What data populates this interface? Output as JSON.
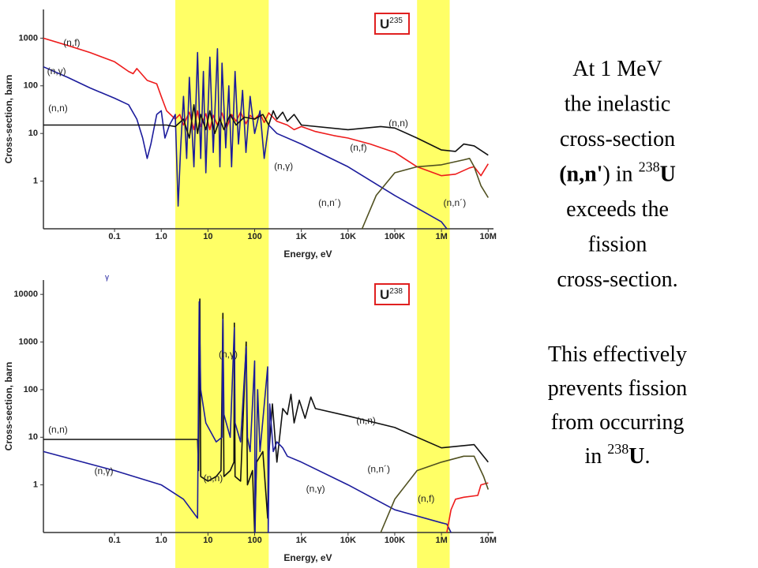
{
  "highlight_ranges": [
    [
      2,
      200
    ],
    [
      300000,
      1500000
    ]
  ],
  "stray_label": "γ",
  "slide_text": {
    "paragraphs": [
      [
        [
          {
            "text": "At 1 MeV"
          }
        ],
        [
          {
            "text": "the inelastic"
          }
        ],
        [
          {
            "text": "cross-section"
          }
        ],
        [
          {
            "text": "(n,n'",
            "bold": true
          },
          {
            "text": ") in "
          },
          {
            "text": "238",
            "sup": true
          },
          {
            "text": "U",
            "bold": true
          }
        ],
        [
          {
            "text": "exceeds the"
          }
        ],
        [
          {
            "text": "fission"
          }
        ],
        [
          {
            "text": "cross-section."
          }
        ]
      ],
      [
        [
          {
            "text": "This effectively"
          }
        ],
        [
          {
            "text": "prevents fission"
          }
        ],
        [
          {
            "text": "from occurring"
          }
        ],
        [
          {
            "text": "in "
          },
          {
            "text": "238",
            "sup": true
          },
          {
            "text": "U",
            "bold": true
          },
          {
            "text": "."
          }
        ]
      ]
    ]
  },
  "chart_data": [
    {
      "type": "line",
      "isotope": {
        "symbol": "U",
        "mass": "235"
      },
      "xlabel": "Energy, eV",
      "ylabel": "Cross-section, barn",
      "xscale": "log",
      "yscale": "log",
      "grid": false,
      "xlim": [
        0.003,
        13000000
      ],
      "ylim": [
        0.1,
        4000
      ],
      "xticks": [
        0.1,
        {
          "value": 1,
          "label": "1.0"
        },
        10,
        100,
        {
          "value": 1000,
          "label": "1K"
        },
        {
          "value": 10000,
          "label": "10K"
        },
        {
          "value": 100000,
          "label": "100K"
        },
        {
          "value": 1000000,
          "label": "1M"
        },
        {
          "value": 10000000,
          "label": "10M"
        }
      ],
      "yticks": [
        1,
        10,
        100,
        1000
      ],
      "series": [
        {
          "name": "(n,f)",
          "color": "#ee1c1c",
          "label_at": [
            [
              0.008,
              780
            ],
            [
              11000,
              4.9
            ]
          ],
          "x": [
            0.003,
            0.01,
            0.03,
            0.1,
            0.2,
            0.25,
            0.3,
            0.5,
            0.8,
            1,
            1.3,
            2,
            2.5,
            3,
            4,
            5,
            6,
            7,
            9,
            11,
            13,
            16,
            20,
            25,
            32,
            40,
            50,
            65,
            80,
            100,
            130,
            160,
            200,
            300,
            500,
            700,
            1000,
            2000,
            5000,
            10000,
            30000,
            100000,
            300000,
            1000000,
            2000000,
            4000000,
            5000000,
            7000000,
            10000000
          ],
          "values": [
            1000,
            700,
            500,
            320,
            200,
            180,
            230,
            130,
            110,
            60,
            30,
            20,
            25,
            15,
            28,
            12,
            30,
            14,
            26,
            12,
            24,
            15,
            27,
            13,
            25,
            18,
            28,
            16,
            24,
            20,
            26,
            17,
            27,
            18,
            15,
            12,
            14,
            11,
            9,
            8,
            6,
            4,
            2,
            1.3,
            1.4,
            1.9,
            2,
            1.3,
            2.3
          ]
        },
        {
          "name": "(n,γ)",
          "color": "#1c1c9c",
          "label_at": [
            [
              0.0036,
              200
            ],
            [
              260,
              2
            ]
          ],
          "x": [
            0.003,
            0.01,
            0.03,
            0.1,
            0.2,
            0.3,
            0.4,
            0.5,
            0.6,
            0.8,
            1,
            1.2,
            1.5,
            2,
            2.3,
            2.6,
            3,
            3.5,
            4,
            5,
            6,
            7,
            8,
            9,
            11,
            13,
            16,
            18,
            20,
            24,
            28,
            32,
            38,
            45,
            55,
            65,
            80,
            100,
            130,
            160,
            200,
            300,
            1000,
            10000,
            100000,
            1000000,
            1300000
          ],
          "values": [
            250,
            150,
            90,
            55,
            40,
            20,
            8,
            3,
            6,
            25,
            30,
            8,
            15,
            25,
            0.3,
            5,
            60,
            3,
            150,
            2,
            500,
            3,
            200,
            1.5,
            400,
            4,
            600,
            2,
            300,
            5,
            100,
            2,
            200,
            6,
            80,
            4,
            60,
            10,
            30,
            3,
            15,
            10,
            6,
            2,
            0.5,
            0.14,
            0.1
          ]
        },
        {
          "name": "(n,n)",
          "color": "#111111",
          "label_at": [
            [
              0.0038,
              33
            ],
            [
              74000,
              16
            ]
          ],
          "x": [
            0.003,
            1,
            1.3,
            2,
            3,
            4,
            5,
            6,
            7,
            9,
            11,
            14,
            18,
            22,
            30,
            40,
            60,
            100,
            150,
            200,
            250,
            300,
            400,
            500,
            700,
            1000,
            10000,
            50000,
            100000,
            300000,
            1000000,
            2000000,
            3000000,
            5000000,
            10000000
          ],
          "values": [
            15,
            15,
            15,
            14,
            20,
            8,
            40,
            10,
            25,
            12,
            30,
            10,
            20,
            12,
            25,
            15,
            22,
            20,
            25,
            15,
            30,
            20,
            28,
            18,
            25,
            15,
            12,
            14,
            13,
            8,
            4.5,
            4.2,
            6,
            5.5,
            3.5
          ]
        },
        {
          "name": "(n,n´)",
          "color": "#505020",
          "label_at": [
            [
              2300,
              0.34
            ],
            [
              1100000,
              0.34
            ]
          ],
          "x": [
            20000,
            40000,
            100000,
            300000,
            1000000,
            3000000,
            4000000,
            5000000,
            7000000,
            10000000
          ],
          "values": [
            0.1,
            0.5,
            1.5,
            2,
            2.2,
            2.8,
            3,
            2,
            0.8,
            0.45
          ]
        }
      ]
    },
    {
      "type": "line",
      "isotope": {
        "symbol": "U",
        "mass": "238"
      },
      "xlabel": "Energy, eV",
      "ylabel": "Cross-section, barn",
      "xscale": "log",
      "yscale": "log",
      "grid": false,
      "xlim": [
        0.003,
        13000000
      ],
      "ylim": [
        0.1,
        20000
      ],
      "xticks": [
        0.1,
        {
          "value": 1,
          "label": "1.0"
        },
        10,
        100,
        {
          "value": 1000,
          "label": "1K"
        },
        {
          "value": 10000,
          "label": "10K"
        },
        {
          "value": 100000,
          "label": "100K"
        },
        {
          "value": 1000000,
          "label": "1M"
        },
        {
          "value": 10000000,
          "label": "10M"
        }
      ],
      "yticks": [
        1,
        10,
        100,
        1000,
        10000
      ],
      "series": [
        {
          "name": "(n,n)",
          "color": "#111111",
          "label_at": [
            [
              0.0038,
              14
            ],
            [
              8,
              1.35
            ],
            [
              15000,
              22
            ]
          ],
          "x": [
            0.003,
            1,
            3,
            6,
            6.3,
            6.7,
            7,
            10,
            15,
            19,
            20.9,
            22,
            30,
            36,
            36.7,
            38,
            50,
            66,
            70,
            90,
            100,
            110,
            150,
            190,
            200,
            240,
            300,
            400,
            500,
            600,
            700,
            900,
            1200,
            1600,
            2000,
            10000,
            100000,
            1000000,
            5000000,
            10000000
          ],
          "values": [
            9,
            9,
            9,
            9,
            2,
            8000,
            1.5,
            1.2,
            1.5,
            2,
            4000,
            1.5,
            2,
            3,
            2500,
            1.5,
            1.2,
            1000,
            1,
            2,
            0.1,
            3,
            5,
            0.2,
            4,
            50,
            3,
            40,
            30,
            80,
            20,
            60,
            25,
            70,
            40,
            28,
            16,
            6,
            7,
            3
          ]
        },
        {
          "name": "(n,γ)",
          "color": "#1c1c9c",
          "label_at": [
            [
              17,
              540
            ],
            [
              0.037,
              1.9
            ],
            [
              1260,
              0.8
            ]
          ],
          "x": [
            0.003,
            0.1,
            1,
            3,
            6,
            6.5,
            7,
            9,
            15,
            20,
            20.9,
            22,
            30,
            36.7,
            38,
            50,
            66,
            70,
            80,
            100,
            102,
            116,
            130,
            190,
            195,
            210,
            250,
            300,
            400,
            500,
            1000,
            10000,
            100000,
            1000000,
            1300000,
            1600000
          ],
          "values": [
            5,
            2,
            1,
            0.5,
            0.2,
            7000,
            100,
            20,
            8,
            10,
            3000,
            30,
            10,
            2000,
            20,
            8,
            800,
            10,
            5,
            400,
            0.1,
            100,
            5,
            300,
            0.1,
            50,
            5,
            8,
            6,
            4,
            3,
            1,
            0.3,
            0.16,
            0.15,
            0.1
          ]
        },
        {
          "name": "(n,f)",
          "color": "#ee1c1c",
          "label_at": [
            [
              310000,
              0.5
            ]
          ],
          "x": [
            1300000,
            1600000,
            2000000,
            3000000,
            6000000,
            7000000,
            10000000
          ],
          "values": [
            0.1,
            0.3,
            0.5,
            0.55,
            0.6,
            1,
            1.1
          ]
        },
        {
          "name": "(n,n´)",
          "color": "#505020",
          "label_at": [
            [
              26000,
              2.1
            ]
          ],
          "x": [
            50000,
            100000,
            300000,
            1000000,
            3000000,
            5000000,
            8000000,
            10000000
          ],
          "values": [
            0.1,
            0.5,
            2,
            3,
            4,
            4,
            1.5,
            0.8
          ]
        }
      ]
    }
  ]
}
